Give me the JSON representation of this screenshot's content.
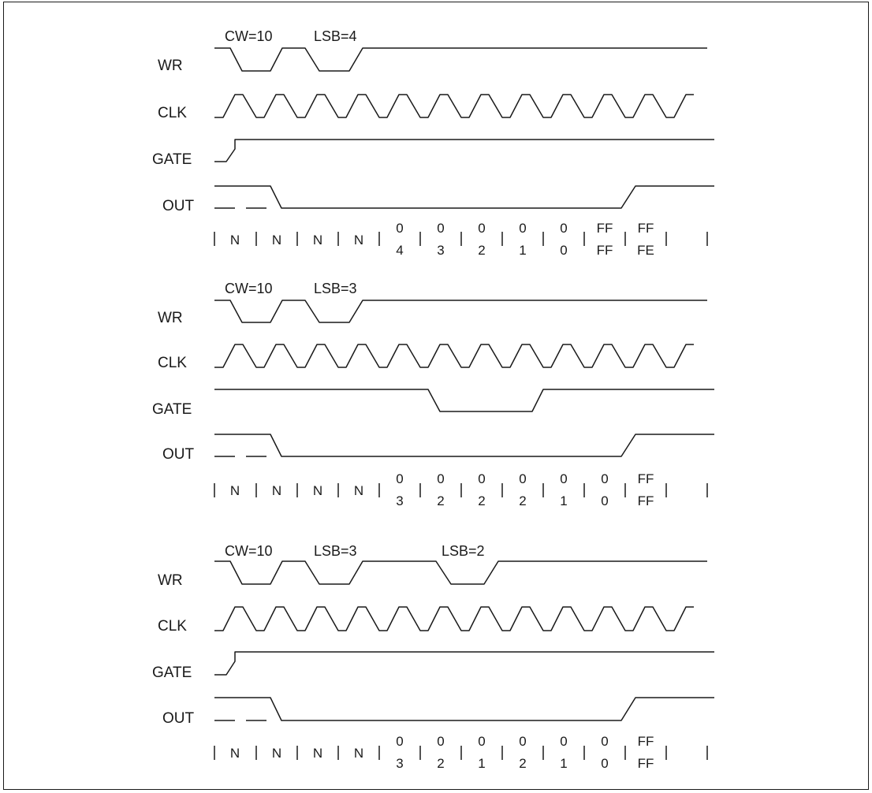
{
  "panels": [
    {
      "labels": {
        "wr": "WR",
        "clk": "CLK",
        "gate": "GATE",
        "out": "OUT"
      },
      "wr_annotations": [
        "CW=10",
        "LSB=4"
      ],
      "counts": [
        [
          "N",
          ""
        ],
        [
          "N",
          ""
        ],
        [
          "N",
          ""
        ],
        [
          "N",
          ""
        ],
        [
          "0",
          "4"
        ],
        [
          "0",
          "3"
        ],
        [
          "0",
          "2"
        ],
        [
          "0",
          "1"
        ],
        [
          "0",
          "0"
        ],
        [
          "FF",
          "FF"
        ],
        [
          "FF",
          "FE"
        ]
      ]
    },
    {
      "labels": {
        "wr": "WR",
        "clk": "CLK",
        "gate": "GATE",
        "out": "OUT"
      },
      "wr_annotations": [
        "CW=10",
        "LSB=3"
      ],
      "counts": [
        [
          "N",
          ""
        ],
        [
          "N",
          ""
        ],
        [
          "N",
          ""
        ],
        [
          "N",
          ""
        ],
        [
          "0",
          "3"
        ],
        [
          "0",
          "2"
        ],
        [
          "0",
          "2"
        ],
        [
          "0",
          "2"
        ],
        [
          "0",
          "1"
        ],
        [
          "0",
          "0"
        ],
        [
          "FF",
          "FF"
        ]
      ]
    },
    {
      "labels": {
        "wr": "WR",
        "clk": "CLK",
        "gate": "GATE",
        "out": "OUT"
      },
      "wr_annotations": [
        "CW=10",
        "LSB=3",
        "LSB=2"
      ],
      "counts": [
        [
          "N",
          ""
        ],
        [
          "N",
          ""
        ],
        [
          "N",
          ""
        ],
        [
          "N",
          ""
        ],
        [
          "0",
          "3"
        ],
        [
          "0",
          "2"
        ],
        [
          "0",
          "1"
        ],
        [
          "0",
          "2"
        ],
        [
          "0",
          "1"
        ],
        [
          "0",
          "0"
        ],
        [
          "FF",
          "FF"
        ]
      ]
    }
  ]
}
